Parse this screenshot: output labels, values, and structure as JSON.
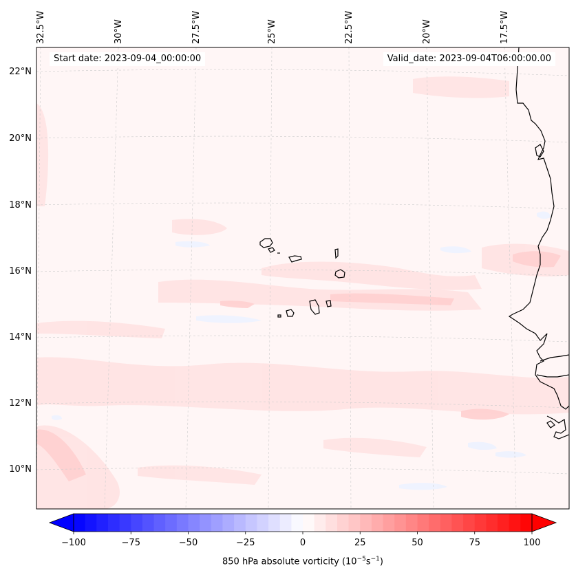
{
  "annotations": {
    "start": "Start date: 2023-09-04_00:00:00",
    "valid": "Valid_date: 2023-09-04T06:00:00.00"
  },
  "longitude_labels": [
    "32.5°W",
    "30°W",
    "27.5°W",
    "25°W",
    "22.5°W",
    "20°W",
    "17.5°W"
  ],
  "latitude_labels": [
    "22°N",
    "20°N",
    "18°N",
    "16°N",
    "14°N",
    "12°N",
    "10°N"
  ],
  "colorbar": {
    "title_main": "850 hPa absolute vorticity (10",
    "title_exp1": "−5",
    "title_mid": "s",
    "title_exp2": "−1",
    "title_end": ")",
    "tick_labels": [
      "−100",
      "−75",
      "−50",
      "−25",
      "0",
      "25",
      "50",
      "75",
      "100"
    ],
    "tick_values": [
      -100,
      -75,
      -50,
      -25,
      0,
      25,
      50,
      75,
      100
    ],
    "range": [
      -100,
      100
    ],
    "negative_color": "#0000ff",
    "positive_color": "#ff0000",
    "neutral_color": "#ffffff"
  },
  "colors": {
    "coastline": "#000000",
    "gridline": "#c8c8c8",
    "field_background": "#fff6f6",
    "weak_positive": "#ffe6e6",
    "moderate_positive": "#ffd6d6",
    "weak_negative": "#eef2ff"
  }
}
